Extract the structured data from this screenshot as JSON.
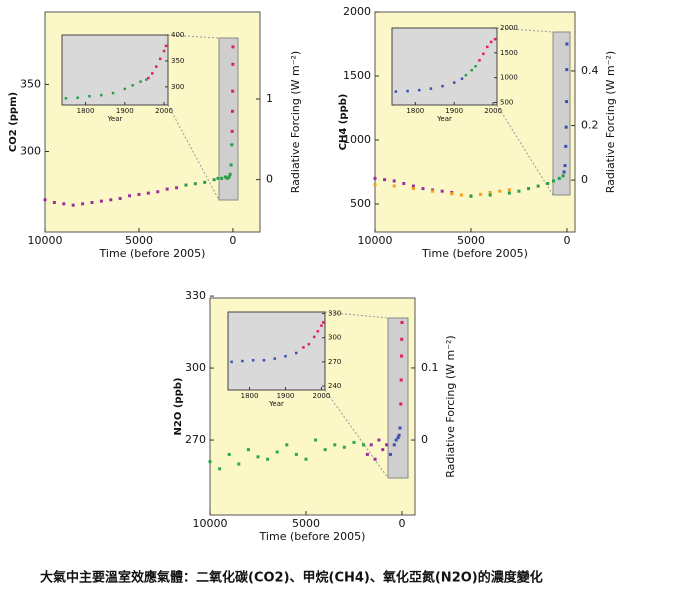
{
  "caption": "大氣中主要溫室效應氣體：二氧化碳(CO2)、甲烷(CH4)、氧化亞氮(N2O)的濃度變化",
  "chart_data": [
    {
      "type": "scatter",
      "xlabel": "Time (before 2005)",
      "ylabel": "CO2 (ppm)",
      "y2label": "Radiative Forcing (W m⁻²)",
      "xlim": [
        10000,
        -1440
      ],
      "xticks": [
        10000,
        5000,
        0
      ],
      "ylim": [
        240,
        404
      ],
      "yticks": [
        300,
        350
      ],
      "y2lim": [
        -0.65,
        2.08
      ],
      "y2ticks": [
        0,
        1
      ],
      "series": [
        {
          "color": "#9b2fa0",
          "x": [
            10000,
            9500,
            9000,
            8500,
            8000,
            7500,
            7000,
            6500,
            6000,
            5500,
            5000,
            4500,
            4000,
            3500,
            3000
          ],
          "values": [
            264,
            262,
            261,
            260,
            261,
            262,
            263,
            264,
            265,
            267,
            268,
            269,
            270,
            272,
            273
          ]
        },
        {
          "color": "#2a9d4a",
          "x": [
            2500,
            2000,
            1500,
            1000,
            800,
            600,
            400,
            300,
            200,
            150,
            100,
            60
          ],
          "values": [
            275,
            276,
            277,
            279,
            280,
            280,
            281,
            280,
            281,
            283,
            290,
            305
          ]
        },
        {
          "color": "#e0205a",
          "x": [
            40,
            25,
            15,
            5,
            0
          ],
          "values": [
            315,
            330,
            345,
            365,
            378
          ]
        }
      ],
      "inset": {
        "xlabel": "Year",
        "xlim": [
          1740,
          2010
        ],
        "xticks": [
          1800,
          1900,
          2000
        ],
        "ylim": [
          265,
          400
        ],
        "yticks": [
          300,
          350,
          400
        ],
        "series": [
          {
            "color": "#2a9d4a",
            "x": [
              1750,
              1780,
              1810,
              1840,
              1870,
              1900,
              1920,
              1940,
              1955
            ],
            "values": [
              278,
              279,
              282,
              284,
              288,
              296,
              303,
              310,
              314
            ]
          },
          {
            "color": "#e0205a",
            "x": [
              1960,
              1970,
              1980,
              1990,
              2000,
              2005
            ],
            "values": [
              317,
              326,
              339,
              354,
              369,
              379
            ]
          }
        ]
      }
    },
    {
      "type": "scatter",
      "xlabel": "Time (before 2005)",
      "ylabel": "CH4 (ppb)",
      "y2label": "Radiative Forcing (W m⁻²)",
      "xlim": [
        10000,
        -420
      ],
      "xticks": [
        10000,
        5000,
        0
      ],
      "ylim": [
        281,
        2000
      ],
      "yticks": [
        500,
        1000,
        1500,
        2000
      ],
      "y2lim": [
        -0.19,
        0.616
      ],
      "y2ticks": [
        0,
        0.2,
        0.4
      ],
      "series": [
        {
          "color": "#9b2fa0",
          "x": [
            10000,
            9500,
            9000,
            8500,
            8000,
            7500,
            7000,
            6500,
            6000
          ],
          "values": [
            700,
            690,
            680,
            660,
            640,
            620,
            610,
            600,
            590
          ]
        },
        {
          "color": "#f0a020",
          "x": [
            10000,
            9000,
            8000,
            7000,
            6000,
            5500,
            5000,
            4500,
            4000,
            3500,
            3000
          ],
          "values": [
            650,
            640,
            620,
            600,
            580,
            570,
            565,
            575,
            590,
            600,
            610
          ]
        },
        {
          "color": "#2a9d4a",
          "x": [
            5000,
            4000,
            3000,
            2500,
            2000,
            1500,
            1000,
            700,
            400,
            200
          ],
          "values": [
            560,
            570,
            585,
            600,
            620,
            640,
            660,
            680,
            700,
            720
          ]
        },
        {
          "color": "#3a4fb0",
          "x": [
            150,
            100,
            60,
            40,
            20,
            10,
            0
          ],
          "values": [
            750,
            800,
            950,
            1100,
            1300,
            1550,
            1750
          ]
        }
      ],
      "inset": {
        "xlabel": "Year",
        "xlim": [
          1740,
          2010
        ],
        "xticks": [
          1800,
          1900,
          2000
        ],
        "ylim": [
          450,
          2000
        ],
        "yticks": [
          500,
          1000,
          1500,
          2000
        ],
        "series": [
          {
            "color": "#3a4fb0",
            "x": [
              1750,
              1780,
              1810,
              1840,
              1870,
              1900,
              1920
            ],
            "values": [
              720,
              730,
              750,
              780,
              830,
              900,
              980
            ]
          },
          {
            "color": "#2a9d4a",
            "x": [
              1930,
              1945,
              1955
            ],
            "values": [
              1050,
              1150,
              1230
            ]
          },
          {
            "color": "#e0205a",
            "x": [
              1965,
              1975,
              1985,
              1995,
              2005
            ],
            "values": [
              1350,
              1480,
              1620,
              1720,
              1775
            ]
          }
        ]
      }
    },
    {
      "type": "scatter",
      "xlabel": "Time (before 2005)",
      "ylabel": "N2O (ppb)",
      "y2label": "Radiative Forcing (W m⁻²)",
      "xlim": [
        10000,
        -680
      ],
      "xticks": [
        10000,
        5000,
        0
      ],
      "ylim": [
        238.75,
        329.2
      ],
      "yticks": [
        270,
        300,
        330
      ],
      "y2lim": [
        -0.104,
        0.197
      ],
      "y2ticks": [
        0,
        0.1
      ],
      "series": [
        {
          "color": "#2aa84a",
          "x": [
            10000,
            9500,
            9000,
            8500,
            8000,
            7500,
            7000,
            6500,
            6000,
            5500,
            5000,
            4500,
            4000,
            3500,
            3000,
            2500,
            2000
          ],
          "values": [
            261,
            258,
            264,
            260,
            266,
            263,
            262,
            265,
            268,
            264,
            262,
            270,
            266,
            268,
            267,
            269,
            268
          ]
        },
        {
          "color": "#9b2fa0",
          "x": [
            1800,
            1600,
            1400,
            1200,
            1000,
            800
          ],
          "values": [
            264,
            268,
            262,
            270,
            266,
            268
          ]
        },
        {
          "color": "#3a4fb0",
          "x": [
            600,
            400,
            300,
            200,
            150,
            100
          ],
          "values": [
            264,
            268,
            270,
            271,
            272,
            275
          ]
        },
        {
          "color": "#e0205a",
          "x": [
            60,
            40,
            20,
            10,
            0
          ],
          "values": [
            285,
            295,
            305,
            312,
            319
          ]
        }
      ],
      "inset": {
        "xlabel": "Year",
        "xlim": [
          1740,
          2010
        ],
        "xticks": [
          1800,
          1900,
          2000
        ],
        "ylim": [
          235,
          332
        ],
        "yticks": [
          240,
          270,
          300,
          330
        ],
        "series": [
          {
            "color": "#3a4fb0",
            "x": [
              1750,
              1780,
              1810,
              1840,
              1870,
              1900,
              1930
            ],
            "values": [
              270,
              271,
              272,
              272,
              274,
              277,
              281
            ]
          },
          {
            "color": "#e0205a",
            "x": [
              1950,
              1965,
              1980,
              1990,
              2000,
              2005
            ],
            "values": [
              288,
              292,
              301,
              308,
              315,
              319
            ]
          }
        ]
      }
    }
  ]
}
